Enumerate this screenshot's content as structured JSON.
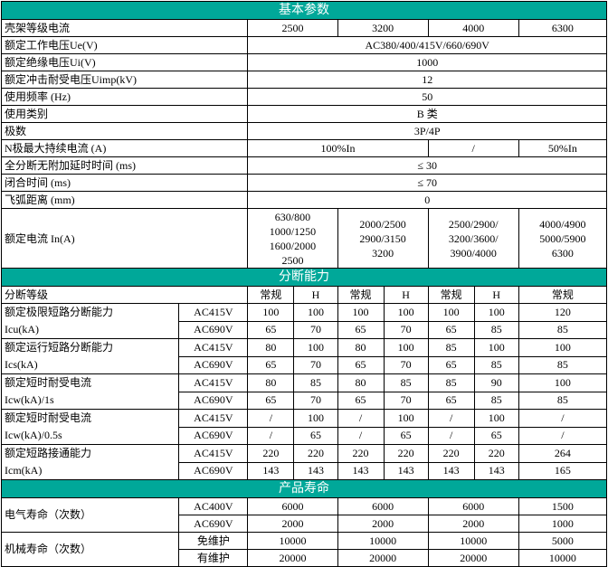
{
  "basic": {
    "title": "基本参数",
    "rows": [
      {
        "label": "壳架等级电流",
        "values": [
          "2500",
          "3200",
          "4000",
          "6300"
        ]
      },
      {
        "label": "额定工作电压Ue(V)",
        "values": [
          "AC380/400/415V/660/690V"
        ]
      },
      {
        "label": "额定绝缘电压Ui(V)",
        "values": [
          "1000"
        ]
      },
      {
        "label": "额定冲击耐受电压Uimp(kV)",
        "values": [
          "12"
        ]
      },
      {
        "label": "使用频率 (Hz)",
        "values": [
          "50"
        ]
      },
      {
        "label": "使用类别",
        "values": [
          "B 类"
        ]
      },
      {
        "label": "极数",
        "values": [
          "3P/4P"
        ]
      },
      {
        "label": "N极最大持续电流 (A)",
        "values": [
          "100%In",
          "/",
          "50%In"
        ]
      },
      {
        "label": "全分断无附加延时时间 (ms)",
        "values": [
          "≤ 30"
        ]
      },
      {
        "label": "闭合时间 (ms)",
        "values": [
          "≤ 70"
        ]
      },
      {
        "label": "飞弧距离 (mm)",
        "values": [
          "0"
        ]
      },
      {
        "label": "额定电流 In(A)",
        "values": [
          "630/800\n1000/1250\n1600/2000\n2500",
          "2000/2500\n2900/3150\n3200",
          "2500/2900/\n3200/3600/\n3900/4000",
          "4000/4900\n5000/5900\n6300"
        ]
      }
    ]
  },
  "breaking": {
    "title": "分断能力",
    "grade_label": "分断等级",
    "grades": [
      "常规",
      "H",
      "常规",
      "H",
      "常规",
      "H",
      "常规"
    ],
    "groups": [
      {
        "label": "额定极限短路分断能力\nIcu(kA)",
        "rows": [
          {
            "voltage": "AC415V",
            "values": [
              "100",
              "100",
              "100",
              "100",
              "100",
              "100",
              "120"
            ]
          },
          {
            "voltage": "AC690V",
            "values": [
              "65",
              "70",
              "65",
              "70",
              "65",
              "85",
              "85"
            ]
          }
        ]
      },
      {
        "label": "额定运行短路分断能力\nIcs(kA)",
        "rows": [
          {
            "voltage": "AC415V",
            "values": [
              "80",
              "100",
              "80",
              "100",
              "85",
              "100",
              "100"
            ]
          },
          {
            "voltage": "AC690V",
            "values": [
              "65",
              "70",
              "65",
              "70",
              "65",
              "85",
              "85"
            ]
          }
        ]
      },
      {
        "label": "额定短时耐受电流\nIcw(kA)/1s",
        "rows": [
          {
            "voltage": "AC415V",
            "values": [
              "80",
              "85",
              "80",
              "85",
              "85",
              "90",
              "100"
            ]
          },
          {
            "voltage": "AC690V",
            "values": [
              "65",
              "70",
              "65",
              "70",
              "65",
              "85",
              "85"
            ]
          }
        ]
      },
      {
        "label": "额定短时耐受电流\nIcw(kA)/0.5s",
        "rows": [
          {
            "voltage": "AC415V",
            "values": [
              "/",
              "100",
              "/",
              "100",
              "/",
              "100",
              "/"
            ]
          },
          {
            "voltage": "AC690V",
            "values": [
              "/",
              "65",
              "/",
              "65",
              "/",
              "65",
              "/"
            ]
          }
        ]
      },
      {
        "label": "额定短路接通能力\nIcm(kA)",
        "rows": [
          {
            "voltage": "AC415V",
            "values": [
              "220",
              "220",
              "220",
              "220",
              "220",
              "220",
              "264"
            ]
          },
          {
            "voltage": "AC690V",
            "values": [
              "143",
              "143",
              "143",
              "143",
              "143",
              "143",
              "165"
            ]
          }
        ]
      }
    ]
  },
  "life": {
    "title": "产品寿命",
    "groups": [
      {
        "label": "电气寿命（次数）",
        "rows": [
          {
            "sub": "AC400V",
            "values": [
              "6000",
              "6000",
              "6000",
              "1500"
            ]
          },
          {
            "sub": "AC690V",
            "values": [
              "2000",
              "2000",
              "2000",
              "1000"
            ]
          }
        ]
      },
      {
        "label": "机械寿命（次数）",
        "rows": [
          {
            "sub": "免维护",
            "values": [
              "10000",
              "10000",
              "10000",
              "5000"
            ]
          },
          {
            "sub": "有维护",
            "values": [
              "20000",
              "20000",
              "20000",
              "10000"
            ]
          }
        ]
      }
    ]
  },
  "colors": {
    "section_header": "#00a899",
    "section_text": "#ffffff",
    "border": "#000000"
  }
}
